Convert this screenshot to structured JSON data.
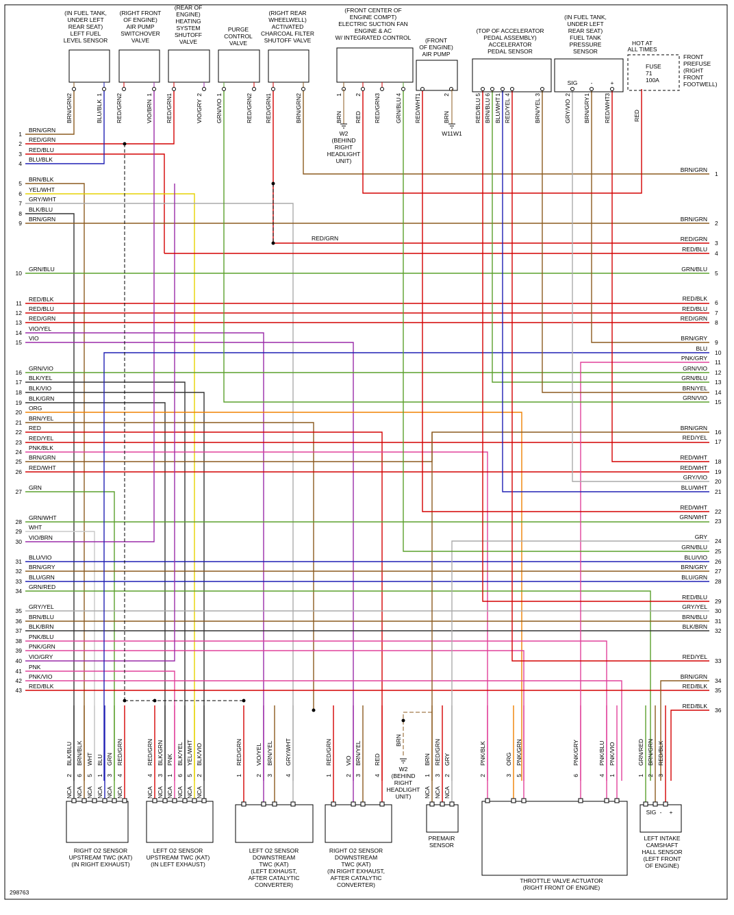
{
  "top_components": [
    {
      "label": [
        "(IN FUEL TANK,",
        "UNDER LEFT",
        "REAR SEAT)",
        "LEFT FUEL",
        "LEVEL SENSOR"
      ],
      "pins": [
        {
          "wire": "BRN/GRN",
          "pin": 2
        },
        {
          "wire": "BLU/BLK",
          "pin": 1
        }
      ]
    },
    {
      "label": [
        "(RIGHT FRONT",
        "OF ENGINE)",
        "AIR PUMP",
        "SWITCHOVER",
        "VALVE"
      ],
      "pins": [
        {
          "wire": "RED/GRN",
          "pin": 2
        },
        {
          "wire": "VIO/BRN",
          "pin": 1
        }
      ]
    },
    {
      "label": [
        "(REAR OF",
        "ENGINE)",
        "HEATING",
        "SYSTEM",
        "SHUTOFF",
        "VALVE"
      ],
      "pins": [
        {
          "wire": "RED/GRN",
          "pin": 1
        },
        {
          "wire": "VIO/GRY",
          "pin": 2
        }
      ]
    },
    {
      "label": [
        "PURGE",
        "CONTROL",
        "VALVE"
      ],
      "pins": [
        {
          "wire": "GRN/VIO",
          "pin": 1
        },
        {
          "wire": "RED/GRN",
          "pin": 2
        }
      ]
    },
    {
      "label": [
        "(RIGHT REAR",
        "WHEELWELL)",
        "ACTIVATED",
        "CHARCOAL FILTER",
        "SHUTOFF VALVE"
      ],
      "pins": [
        {
          "wire": "RED/GRN",
          "pin": 1
        },
        {
          "wire": "BRN/GRN",
          "pin": 2
        }
      ]
    },
    {
      "label": [
        "(FRONT CENTER OF",
        "ENGINE COMPT)",
        "ELECTRIC SUCTION FAN",
        "ENGINE & AC",
        "W/ INTEGRATED CONTROL"
      ],
      "pins": [
        {
          "wire": "BRN",
          "pin": 1
        },
        {
          "wire": "RED",
          "pin": 2
        },
        {
          "wire": "RED/GRN",
          "pin": 3
        },
        {
          "wire": "GRN/BLU",
          "pin": 4
        }
      ]
    },
    {
      "label": [
        "(FRONT",
        "OF ENGINE)",
        "AIR PUMP"
      ],
      "pins": [
        {
          "wire": "RED/WHT",
          "pin": 1
        },
        {
          "wire": "BRN",
          "pin": 2
        }
      ]
    },
    {
      "label": [
        "(TOP OF ACCELERATOR",
        "PEDAL ASSEMBLY)",
        "ACCELERATOR",
        "PEDAL SENSOR"
      ],
      "pins": [
        {
          "wire": "RED/BLU",
          "pin": 5
        },
        {
          "wire": "BRN/BLU",
          "pin": 6
        },
        {
          "wire": "BLU/WHT",
          "pin": 1
        },
        {
          "wire": "RED/YEL",
          "pin": 4
        },
        {
          "wire": "BRN/YEL",
          "pin": 3
        }
      ]
    },
    {
      "label": [
        "(IN FUEL TANK,",
        "UNDER LEFT",
        "REAR SEAT)",
        "FUEL TANK",
        "PRESSURE",
        "SENSOR"
      ],
      "pins": [
        {
          "wire": "GRY/VIO",
          "pin": 2
        },
        {
          "wire": "BRN/GRY",
          "pin": 1
        },
        {
          "wire": "RED/WHT",
          "pin": 3
        }
      ],
      "terminals": [
        "SIG",
        "-",
        "+"
      ]
    }
  ],
  "hot": {
    "label": [
      "HOT AT",
      "ALL TIMES"
    ],
    "fuse": [
      "FUSE",
      "71",
      "100A"
    ],
    "prefuse": [
      "FRONT",
      "PREFUSE",
      "(RIGHT",
      "FRONT",
      "FOOTWELL)"
    ],
    "wire": "RED"
  },
  "top_grounds": [
    {
      "label": [
        "W2",
        "(BEHIND",
        "RIGHT",
        "HEADLIGHT",
        "UNIT)"
      ]
    },
    {
      "label": [
        "W11W1"
      ]
    }
  ],
  "bottom_ground": {
    "wire": "BRN",
    "label": [
      "W2",
      "(BEHIND",
      "RIGHT",
      "HEADLIGHT",
      "UNIT)"
    ]
  },
  "mid_label": "RED/GRN",
  "bottom_components": [
    {
      "label": [
        "RIGHT O2 SENSOR",
        "UPSTREAM TWC (KAT)",
        "(IN RIGHT EXHAUST)"
      ],
      "pins": [
        {
          "wire": "BLK/BLU",
          "pin": 2,
          "nca": "NCA"
        },
        {
          "wire": "BRN/BLK",
          "pin": 6,
          "nca": "NCA"
        },
        {
          "wire": "WHT",
          "pin": 5,
          "nca": "NCA"
        },
        {
          "wire": "BLU",
          "pin": 1,
          "nca": "NCA"
        },
        {
          "wire": "GRN",
          "pin": 3,
          "nca": "NCA"
        },
        {
          "wire": "RED/GRN",
          "pin": 4,
          "nca": "NCA"
        }
      ]
    },
    {
      "label": [
        "LEFT O2 SENSOR",
        "UPSTREAM TWC (KAT)",
        "(IN LEFT EXHAUST)"
      ],
      "pins": [
        {
          "wire": "RED/GRN",
          "pin": 4,
          "nca": "NCA"
        },
        {
          "wire": "BLK/GRN",
          "pin": 3,
          "nca": "NCA"
        },
        {
          "wire": "PNK",
          "pin": 1,
          "nca": "NCA"
        },
        {
          "wire": "BLK/YEL",
          "pin": 6,
          "nca": "NCA"
        },
        {
          "wire": "YEL/WHT",
          "pin": 5,
          "nca": "NCA"
        },
        {
          "wire": "BLK/VIO",
          "pin": 2,
          "nca": "NCA"
        }
      ]
    },
    {
      "label": [
        "LEFT O2 SENSOR",
        "DOWNSTREAM",
        "TWC (KAT)",
        "(LEFT EXHAUST,",
        "AFTER CATALYTIC",
        "CONVERTER)"
      ],
      "pins": [
        {
          "wire": "RED/GRN",
          "pin": 1
        },
        {
          "wire": "VIO/YEL",
          "pin": 2
        },
        {
          "wire": "BRN/YEL",
          "pin": 3
        },
        {
          "wire": "GRY/WHT",
          "pin": 4
        }
      ]
    },
    {
      "label": [
        "RIGHT O2 SENSOR",
        "DOWNSTREAM",
        "TWC (KAT)",
        "(IN RIGHT EXHAUST,",
        "AFTER CATALYTIC",
        "CONVERTER)"
      ],
      "pins": [
        {
          "wire": "RED/GRN",
          "pin": 1
        },
        {
          "wire": "VIO",
          "pin": 2
        },
        {
          "wire": "BRN/YEL",
          "pin": 3
        },
        {
          "wire": "RED",
          "pin": 4
        }
      ]
    },
    {
      "label": [
        "PREMAIR",
        "SENSOR"
      ],
      "pins": [
        {
          "wire": "BRN",
          "pin": 1,
          "nca": "NCA"
        },
        {
          "wire": "RED/GRN",
          "pin": 3,
          "nca": "NCA"
        },
        {
          "wire": "GRY",
          "pin": 2,
          "nca": "NCA"
        }
      ]
    },
    {
      "label": [
        "THROTTLE VALVE ACTUATOR",
        "(RIGHT FRONT OF ENGINE)"
      ],
      "pins": [
        {
          "wire": "PNK/BLK",
          "pin": 2
        },
        {
          "wire": "ORG",
          "pin": 3
        },
        {
          "wire": "PNK/GRN",
          "pin": 5
        },
        {
          "wire": "PNK/GRY",
          "pin": 6
        },
        {
          "wire": "PNK/BLU",
          "pin": 4
        },
        {
          "wire": "PNK/VIO",
          "pin": 1
        }
      ]
    },
    {
      "label": [
        "LEFT INTAKE",
        "CAMSHAFT",
        "HALL SENSOR",
        "(LEFT FRONT",
        "OF ENGINE)"
      ],
      "pins": [
        {
          "wire": "GRN/RED",
          "pin": 1
        },
        {
          "wire": "BRN/GRN",
          "pin": 2
        },
        {
          "wire": "RED/BLK",
          "pin": 3
        }
      ],
      "terminals": [
        "SIG",
        "-",
        "+"
      ]
    }
  ],
  "left_rows": [
    {
      "number": 1,
      "wire": "BRN/GRN"
    },
    {
      "number": 2,
      "wire": "RED/GRN"
    },
    {
      "number": 3,
      "wire": "RED/BLU"
    },
    {
      "number": 4,
      "wire": "BLU/BLK"
    },
    {
      "number": 5,
      "wire": "BRN/BLK"
    },
    {
      "number": 6,
      "wire": "YEL/WHT"
    },
    {
      "number": 7,
      "wire": "GRY/WHT"
    },
    {
      "number": 8,
      "wire": "BLK/BLU"
    },
    {
      "number": 9,
      "wire": "BRN/GRN"
    },
    {
      "number": 10,
      "wire": "GRN/BLU"
    },
    {
      "number": 11,
      "wire": "RED/BLK"
    },
    {
      "number": 12,
      "wire": "RED/BLU"
    },
    {
      "number": 13,
      "wire": "RED/GRN"
    },
    {
      "number": 14,
      "wire": "VIO/YEL"
    },
    {
      "number": 15,
      "wire": "VIO"
    },
    {
      "number": 16,
      "wire": "GRN/VIO"
    },
    {
      "number": 17,
      "wire": "BLK/YEL"
    },
    {
      "number": 18,
      "wire": "BLK/VIO"
    },
    {
      "number": 19,
      "wire": "BLK/GRN"
    },
    {
      "number": 20,
      "wire": "ORG"
    },
    {
      "number": 21,
      "wire": "BRN/YEL"
    },
    {
      "number": 22,
      "wire": "RED"
    },
    {
      "number": 23,
      "wire": "RED/YEL"
    },
    {
      "number": 24,
      "wire": "PNK/BLK"
    },
    {
      "number": 25,
      "wire": "BRN/GRN"
    },
    {
      "number": 26,
      "wire": "RED/WHT"
    },
    {
      "number": 27,
      "wire": "GRN"
    },
    {
      "number": 28,
      "wire": "GRN/WHT"
    },
    {
      "number": 29,
      "wire": "WHT"
    },
    {
      "number": 30,
      "wire": "VIO/BRN"
    },
    {
      "number": 31,
      "wire": "BLU/VIO"
    },
    {
      "number": 32,
      "wire": "BRN/GRY"
    },
    {
      "number": 33,
      "wire": "BLU/GRN"
    },
    {
      "number": 34,
      "wire": "GRN/RED"
    },
    {
      "number": 35,
      "wire": "GRY/YEL"
    },
    {
      "number": 36,
      "wire": "BRN/BLU"
    },
    {
      "number": 37,
      "wire": "BLK/BRN"
    },
    {
      "number": 38,
      "wire": "PNK/BLU"
    },
    {
      "number": 39,
      "wire": "PNK/GRN"
    },
    {
      "number": 40,
      "wire": "VIO/GRY"
    },
    {
      "number": 41,
      "wire": "PNK"
    },
    {
      "number": 42,
      "wire": "PNK/VIO"
    },
    {
      "number": 43,
      "wire": "RED/BLK"
    }
  ],
  "right_rows": [
    {
      "number": 1,
      "wire": "BRN/GRN"
    },
    {
      "number": 2,
      "wire": "BRN/GRN"
    },
    {
      "number": 3,
      "wire": "RED/GRN"
    },
    {
      "number": 4,
      "wire": "RED/BLU"
    },
    {
      "number": 5,
      "wire": "GRN/BLU"
    },
    {
      "number": 6,
      "wire": "RED/BLK"
    },
    {
      "number": 7,
      "wire": "RED/BLU"
    },
    {
      "number": 8,
      "wire": "RED/GRN"
    },
    {
      "number": 9,
      "wire": "BRN/GRY"
    },
    {
      "number": 10,
      "wire": "BLU"
    },
    {
      "number": 11,
      "wire": "PNK/GRY"
    },
    {
      "number": 12,
      "wire": "GRN/VIO"
    },
    {
      "number": 13,
      "wire": "GRN/BLU"
    },
    {
      "number": 14,
      "wire": "BRN/YEL"
    },
    {
      "number": 15,
      "wire": "GRN/VIO"
    },
    {
      "number": 16,
      "wire": "BRN/GRN"
    },
    {
      "number": 17,
      "wire": "RED/YEL"
    },
    {
      "number": 18,
      "wire": "RED/WHT"
    },
    {
      "number": 19,
      "wire": "RED/WHT"
    },
    {
      "number": 20,
      "wire": "GRY/VIO"
    },
    {
      "number": 21,
      "wire": "BLU/WHT"
    },
    {
      "number": 22,
      "wire": "RED/WHT"
    },
    {
      "number": 23,
      "wire": "GRN/WHT"
    },
    {
      "number": 24,
      "wire": "GRY"
    },
    {
      "number": 25,
      "wire": "GRN/BLU"
    },
    {
      "number": 26,
      "wire": "BLU/VIO"
    },
    {
      "number": 27,
      "wire": "BRN/GRY"
    },
    {
      "number": 28,
      "wire": "BLU/GRN"
    },
    {
      "number": 29,
      "wire": "RED/BLU"
    },
    {
      "number": 30,
      "wire": "GRY/YEL"
    },
    {
      "number": 31,
      "wire": "BRN/BLU"
    },
    {
      "number": 32,
      "wire": "BLK/BRN"
    },
    {
      "number": 33,
      "wire": "RED/YEL"
    },
    {
      "number": 34,
      "wire": "BRN/GRN"
    },
    {
      "number": 35,
      "wire": "RED/BLK"
    },
    {
      "number": 36,
      "wire": "RED/BLK"
    }
  ],
  "footer": "298763"
}
